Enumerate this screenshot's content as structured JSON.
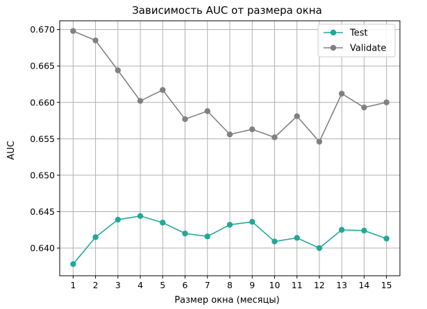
{
  "chart_data": {
    "type": "line",
    "title": "Зависимость AUC от размера окна",
    "xlabel": "Размер окна (месяцы)",
    "ylabel": "AUC",
    "x": [
      1,
      2,
      3,
      4,
      5,
      6,
      7,
      8,
      9,
      10,
      11,
      12,
      13,
      14,
      15
    ],
    "x_ticks": [
      "1",
      "2",
      "3",
      "4",
      "5",
      "6",
      "7",
      "8",
      "9",
      "10",
      "11",
      "12",
      "13",
      "14",
      "15"
    ],
    "y_ticks": [
      "0.640",
      "0.645",
      "0.650",
      "0.655",
      "0.660",
      "0.665",
      "0.670"
    ],
    "y_tick_values": [
      0.64,
      0.645,
      0.65,
      0.655,
      0.66,
      0.665,
      0.67
    ],
    "xlim": [
      0.4,
      15.6
    ],
    "ylim": [
      0.6362,
      0.6712
    ],
    "grid": true,
    "legend_position": "top-right",
    "series": [
      {
        "name": "Test",
        "color": "#20a898",
        "values": [
          0.6378,
          0.6415,
          0.6439,
          0.6444,
          0.6435,
          0.642,
          0.6416,
          0.6432,
          0.6436,
          0.6409,
          0.6414,
          0.64,
          0.6425,
          0.6424,
          0.6413
        ]
      },
      {
        "name": "Validate",
        "color": "#808080",
        "values": [
          0.6698,
          0.6685,
          0.6644,
          0.6602,
          0.6617,
          0.6577,
          0.6588,
          0.6556,
          0.6563,
          0.6552,
          0.6581,
          0.6546,
          0.6612,
          0.6593,
          0.66
        ]
      }
    ]
  }
}
